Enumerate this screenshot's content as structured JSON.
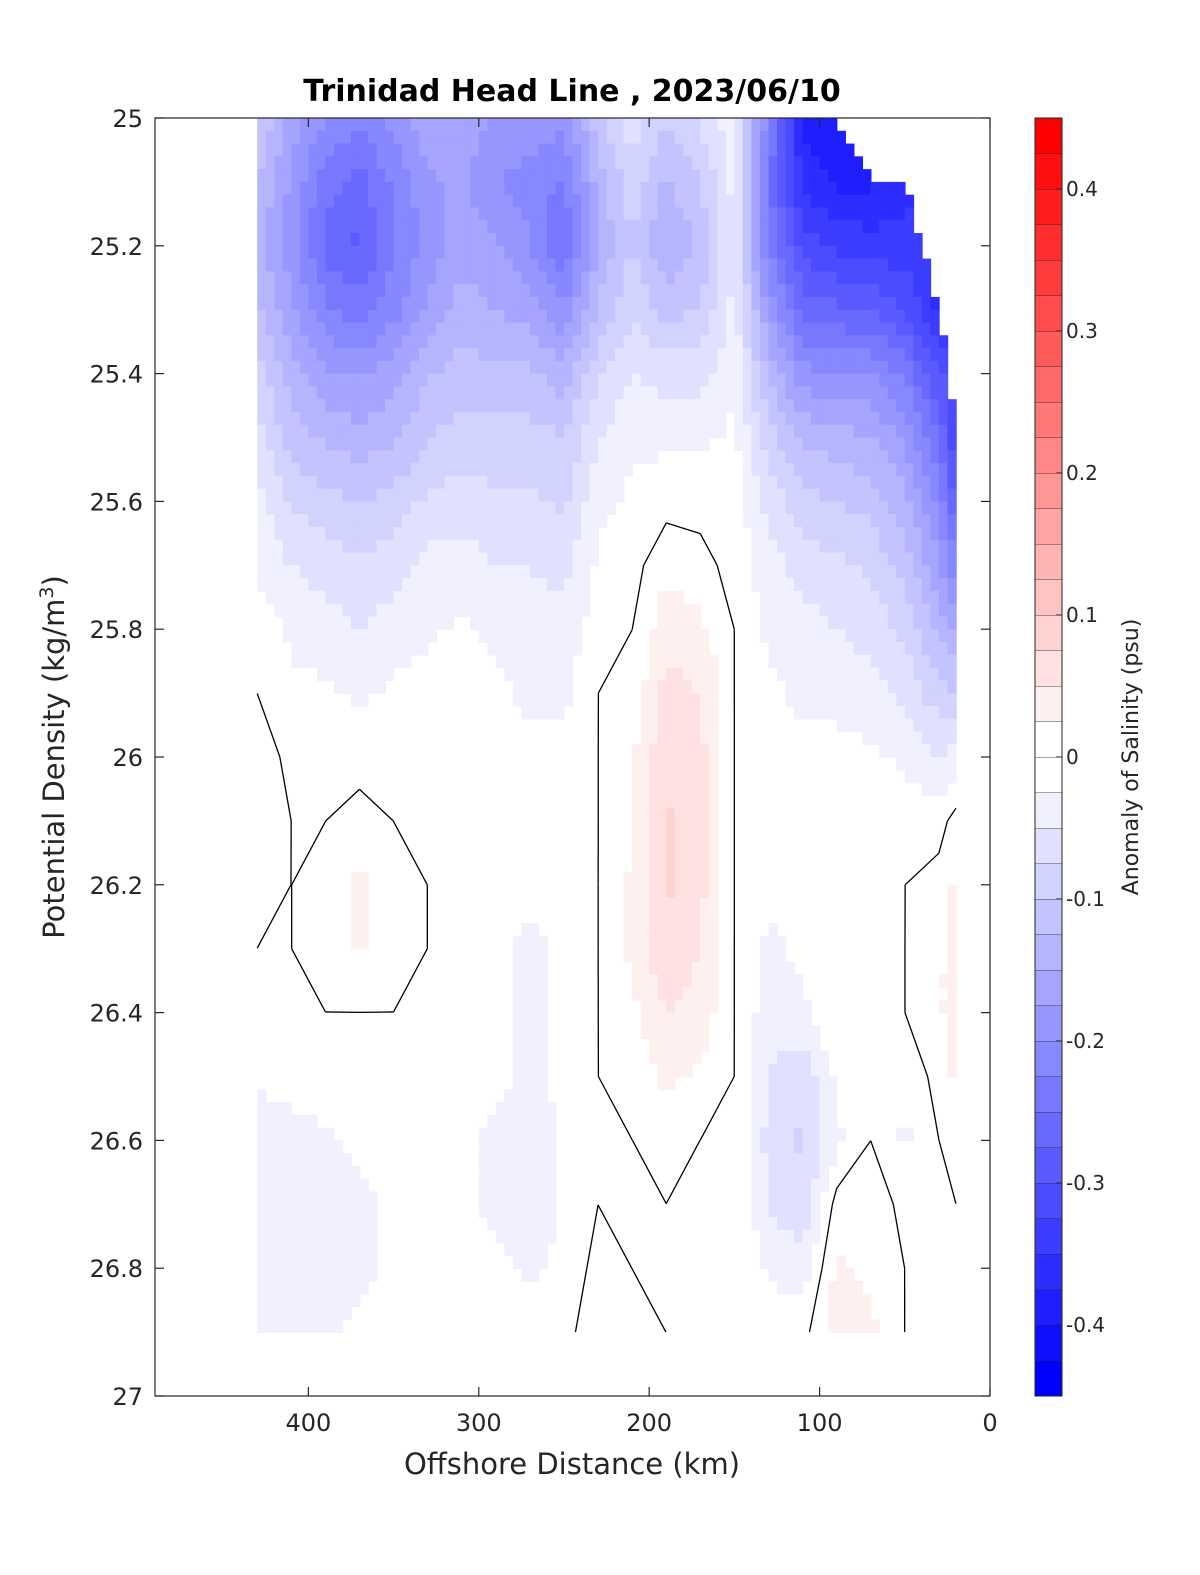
{
  "chart_data": {
    "type": "heatmap",
    "title": "Trinidad Head Line , 2023/06/10",
    "xlabel": "Offshore Distance (km)",
    "ylabel": "Potential Density (kg/m",
    "ylabel_sup": "3",
    "ylabel_close": ")",
    "xlim": [
      490,
      0
    ],
    "ylim": [
      25,
      27
    ],
    "y_reversed": true,
    "xticks": [
      400,
      300,
      200,
      100,
      0
    ],
    "yticks": [
      25,
      25.2,
      25.4,
      25.6,
      25.8,
      26,
      26.2,
      26.4,
      26.6,
      26.8,
      27
    ],
    "ytick_labels": [
      "25",
      "25.2",
      "25.4",
      "25.6",
      "25.8",
      "26",
      "26.2",
      "26.4",
      "26.6",
      "26.8",
      "27"
    ],
    "grid": false,
    "colorbar": {
      "label": "Anomaly of Salinity (psu)",
      "range": [
        -0.45,
        0.45
      ],
      "step": 0.025,
      "colormap": "blue-white-red",
      "ticks": [
        0.4,
        0.3,
        0.2,
        0.1,
        0,
        -0.1,
        -0.2,
        -0.3,
        -0.4
      ],
      "tick_labels": [
        "0.4",
        "0.3",
        "0.2",
        "0.1",
        "0",
        "-0.1",
        "-0.2",
        "-0.3",
        "-0.4"
      ]
    },
    "zero_contour": true,
    "x": [
      430,
      410,
      390,
      370,
      350,
      330,
      310,
      290,
      270,
      250,
      230,
      210,
      190,
      170,
      150,
      130,
      110,
      90,
      70,
      50,
      30,
      20
    ],
    "y": [
      25.0,
      25.1,
      25.2,
      25.3,
      25.4,
      25.5,
      25.6,
      25.7,
      25.8,
      25.9,
      26.0,
      26.1,
      26.2,
      26.3,
      26.4,
      26.5,
      26.6,
      26.7,
      26.8,
      26.9
    ],
    "valid_ranges": [
      [
        25.0,
        26.9
      ],
      [
        25.0,
        26.9
      ],
      [
        25.0,
        26.9
      ],
      [
        25.0,
        26.9
      ],
      [
        25.0,
        26.9
      ],
      [
        25.0,
        26.9
      ],
      [
        25.0,
        26.9
      ],
      [
        25.0,
        26.9
      ],
      [
        25.0,
        26.9
      ],
      [
        25.0,
        26.9
      ],
      [
        25.0,
        26.9
      ],
      [
        25.0,
        26.9
      ],
      [
        25.0,
        26.9
      ],
      [
        25.0,
        26.9
      ],
      [
        25.0,
        26.9
      ],
      [
        25.0,
        26.9
      ],
      [
        25.0,
        26.9
      ],
      [
        25.0,
        26.9
      ],
      [
        25.1,
        26.9
      ],
      [
        25.1,
        26.9
      ],
      [
        25.3,
        26.9
      ],
      [
        25.5,
        26.9
      ]
    ],
    "z": [
      [
        -0.1,
        -0.12,
        -0.14,
        -0.12,
        -0.09,
        -0.06,
        -0.04,
        -0.03,
        -0.01,
        0.0,
        0.02,
        0.02,
        0.01,
        0.0,
        0.0,
        -0.02,
        -0.04,
        -0.04,
        -0.04,
        -0.04
      ],
      [
        -0.16,
        -0.18,
        -0.19,
        -0.17,
        -0.14,
        -0.11,
        -0.08,
        -0.05,
        -0.03,
        -0.02,
        -0.01,
        0.0,
        0.0,
        0.0,
        0.0,
        -0.02,
        -0.03,
        -0.04,
        -0.04,
        -0.03
      ],
      [
        -0.2,
        -0.24,
        -0.26,
        -0.22,
        -0.17,
        -0.13,
        -0.09,
        -0.06,
        -0.04,
        -0.02,
        0.0,
        0.0,
        0.01,
        0.01,
        0.0,
        -0.01,
        -0.03,
        -0.03,
        -0.03,
        -0.03
      ],
      [
        -0.22,
        -0.26,
        -0.28,
        -0.24,
        -0.18,
        -0.14,
        -0.1,
        -0.07,
        -0.05,
        -0.03,
        -0.01,
        0.01,
        0.03,
        0.03,
        0.0,
        -0.01,
        -0.02,
        -0.03,
        -0.03,
        -0.02
      ],
      [
        -0.19,
        -0.22,
        -0.23,
        -0.21,
        -0.16,
        -0.13,
        -0.09,
        -0.06,
        -0.04,
        -0.02,
        0.0,
        0.0,
        0.01,
        0.01,
        0.0,
        -0.01,
        -0.02,
        -0.02,
        -0.02,
        -0.02
      ],
      [
        -0.16,
        -0.18,
        -0.19,
        -0.17,
        -0.13,
        -0.1,
        -0.07,
        -0.04,
        -0.03,
        -0.01,
        0.0,
        0.0,
        0.0,
        0.0,
        0.0,
        0.0,
        -0.01,
        -0.02,
        -0.02,
        -0.01
      ],
      [
        -0.16,
        -0.17,
        -0.16,
        -0.14,
        -0.11,
        -0.09,
        -0.06,
        -0.04,
        -0.02,
        -0.01,
        0.0,
        0.0,
        0.0,
        -0.01,
        -0.01,
        -0.01,
        -0.02,
        -0.02,
        -0.02,
        -0.01
      ],
      [
        -0.18,
        -0.2,
        -0.17,
        -0.15,
        -0.12,
        -0.09,
        -0.07,
        -0.05,
        -0.03,
        -0.02,
        -0.01,
        -0.01,
        -0.02,
        -0.02,
        -0.02,
        -0.02,
        -0.03,
        -0.03,
        -0.02,
        -0.01
      ],
      [
        -0.18,
        -0.21,
        -0.2,
        -0.16,
        -0.12,
        -0.09,
        -0.07,
        -0.05,
        -0.04,
        -0.03,
        -0.02,
        -0.02,
        -0.02,
        -0.03,
        -0.03,
        -0.03,
        -0.04,
        -0.04,
        -0.03,
        -0.01
      ],
      [
        -0.19,
        -0.23,
        -0.25,
        -0.2,
        -0.14,
        -0.1,
        -0.08,
        -0.06,
        -0.04,
        -0.03,
        -0.02,
        -0.02,
        -0.01,
        -0.02,
        -0.02,
        -0.02,
        -0.02,
        -0.02,
        -0.02,
        -0.01
      ],
      [
        -0.11,
        -0.14,
        -0.15,
        -0.12,
        -0.08,
        -0.05,
        -0.03,
        -0.02,
        -0.01,
        0.0,
        0.0,
        0.0,
        0.0,
        0.0,
        0.0,
        0.0,
        0.0,
        0.0,
        0.01,
        0.02
      ],
      [
        -0.06,
        -0.08,
        -0.1,
        -0.08,
        -0.05,
        -0.03,
        -0.02,
        -0.01,
        0.0,
        0.01,
        0.02,
        0.02,
        0.03,
        0.03,
        0.02,
        0.01,
        0.0,
        0.0,
        0.0,
        0.01
      ],
      [
        -0.1,
        -0.13,
        -0.15,
        -0.11,
        -0.06,
        -0.03,
        -0.01,
        0.02,
        0.04,
        0.06,
        0.07,
        0.08,
        0.08,
        0.07,
        0.05,
        0.03,
        0.01,
        0.0,
        0.0,
        0.0
      ],
      [
        -0.07,
        -0.1,
        -0.12,
        -0.1,
        -0.06,
        -0.03,
        -0.01,
        0.01,
        0.03,
        0.05,
        0.06,
        0.06,
        0.06,
        0.05,
        0.04,
        0.02,
        0.0,
        0.0,
        0.0,
        0.0
      ],
      [
        -0.03,
        -0.04,
        -0.05,
        -0.04,
        -0.03,
        -0.02,
        -0.01,
        -0.01,
        0.0,
        0.0,
        0.0,
        0.0,
        0.0,
        0.0,
        0.0,
        0.0,
        0.0,
        0.0,
        0.0,
        0.0
      ],
      [
        -0.22,
        -0.24,
        -0.23,
        -0.18,
        -0.13,
        -0.09,
        -0.06,
        -0.04,
        -0.03,
        -0.02,
        -0.01,
        -0.01,
        -0.02,
        -0.03,
        -0.04,
        -0.05,
        -0.06,
        -0.05,
        -0.03,
        -0.01
      ],
      [
        -0.38,
        -0.36,
        -0.31,
        -0.26,
        -0.19,
        -0.13,
        -0.09,
        -0.06,
        -0.04,
        -0.03,
        -0.02,
        -0.01,
        -0.01,
        -0.02,
        -0.03,
        -0.07,
        -0.08,
        -0.07,
        -0.04,
        -0.01
      ],
      [
        -0.4,
        -0.38,
        -0.33,
        -0.27,
        -0.2,
        -0.14,
        -0.1,
        -0.07,
        -0.05,
        -0.03,
        -0.02,
        -0.01,
        0.0,
        0.0,
        0.0,
        -0.02,
        -0.03,
        0.01,
        0.03,
        0.04
      ],
      [
        null,
        -0.38,
        -0.34,
        -0.28,
        -0.2,
        -0.15,
        -0.11,
        -0.08,
        -0.06,
        -0.04,
        -0.02,
        -0.01,
        0.0,
        0.0,
        0.0,
        -0.01,
        0.0,
        0.02,
        0.02,
        0.03
      ],
      [
        null,
        -0.36,
        -0.34,
        -0.3,
        -0.23,
        -0.18,
        -0.14,
        -0.11,
        -0.08,
        -0.06,
        -0.03,
        -0.01,
        0.0,
        0.0,
        0.0,
        -0.02,
        -0.03,
        -0.01,
        0.0,
        0.0
      ],
      [
        null,
        null,
        null,
        -0.36,
        -0.3,
        -0.25,
        -0.21,
        -0.17,
        -0.13,
        -0.09,
        -0.05,
        -0.01,
        0.01,
        0.02,
        0.02,
        0.01,
        0.0,
        0.0,
        0.0,
        0.0
      ],
      [
        null,
        null,
        null,
        null,
        null,
        -0.33,
        -0.28,
        -0.22,
        -0.16,
        -0.1,
        -0.04,
        0.01,
        0.03,
        0.04,
        0.04,
        0.03,
        0.01,
        0.0,
        0.0,
        0.0
      ]
    ]
  }
}
